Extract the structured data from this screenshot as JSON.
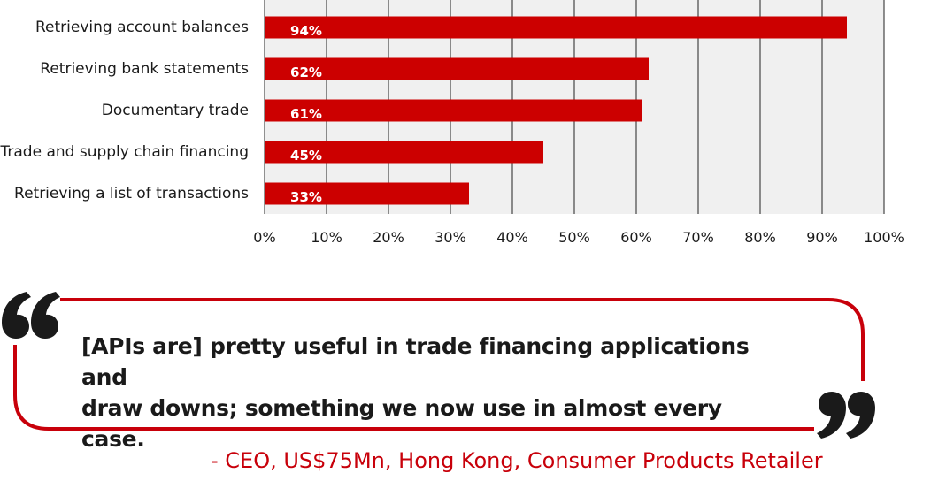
{
  "colors": {
    "bar": "#cc0000",
    "quote_frame": "#c8000a",
    "plot_bg": "#f0f0f0",
    "grid": "#222222"
  },
  "chart_data": {
    "type": "bar",
    "orientation": "horizontal",
    "categories": [
      "Retrieving account balances",
      "Retrieving bank statements",
      "Documentary trade",
      "Trade and supply chain financing",
      "Retrieving a list of transactions"
    ],
    "values": [
      94,
      62,
      61,
      45,
      33
    ],
    "value_labels": [
      "94%",
      "62%",
      "61%",
      "45%",
      "33%"
    ],
    "xlim": [
      0,
      100
    ],
    "xticks": [
      "0%",
      "10%",
      "20%",
      "30%",
      "40%",
      "50%",
      "60%",
      "70%",
      "80%",
      "90%",
      "100%"
    ],
    "grid": true,
    "legend": false
  },
  "quote": {
    "lines": [
      "[APIs are] pretty useful in trade financing applications and",
      "draw downs; something we now use in almost every case."
    ],
    "attribution": "- CEO, US$75Mn, Hong Kong, Consumer Products Retailer",
    "open_icon": "open-quote-icon",
    "close_icon": "close-quote-icon"
  }
}
